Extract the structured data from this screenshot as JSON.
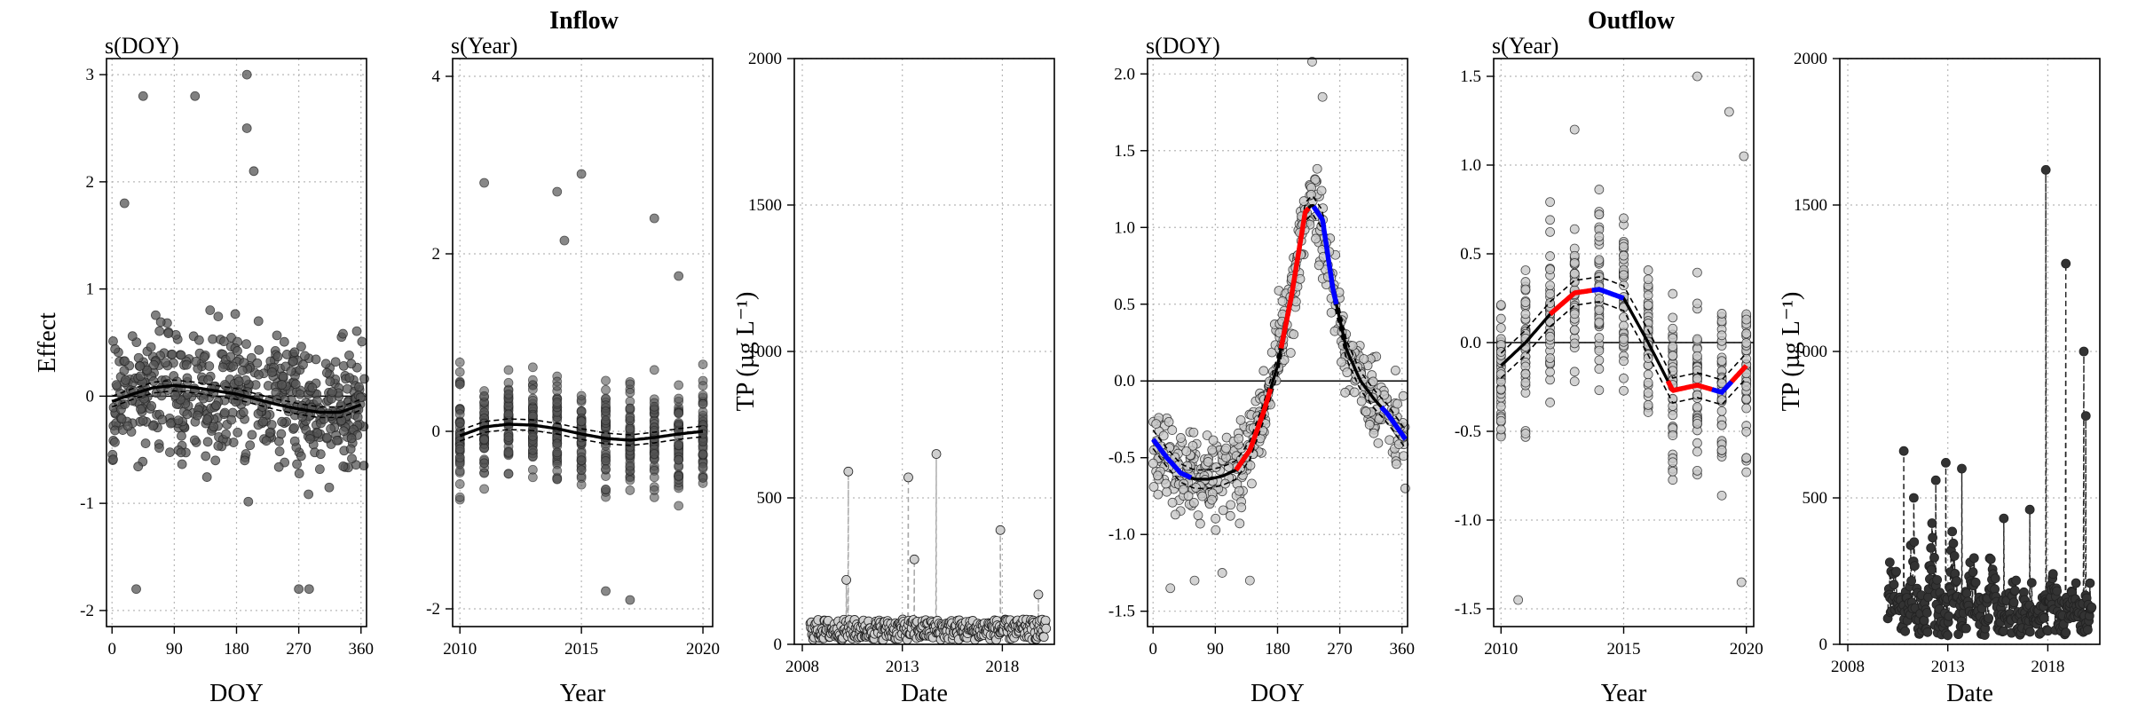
{
  "groups": [
    {
      "title": "Inflow",
      "over_panel": 1
    },
    {
      "title": "Outflow",
      "over_panel": 4
    }
  ],
  "chart_data": [
    {
      "type": "scatter",
      "panel_label": "s(DOY)",
      "xlabel": "DOY",
      "ylabel": "Effect",
      "xlim": [
        -8,
        368
      ],
      "ylim": [
        -2.15,
        3.15
      ],
      "xticks": [
        0,
        90,
        180,
        270,
        360
      ],
      "yticks": [
        -2,
        -1,
        0,
        1,
        2,
        3
      ],
      "grid": true,
      "zero_line": true,
      "point_color": "#555555",
      "points_description": "partial residuals, about 600 points spread across DOY 0-365",
      "points_range": [
        -1.8,
        3.0
      ],
      "outliers": [
        [
          45,
          2.8
        ],
        [
          120,
          2.8
        ],
        [
          195,
          3.0
        ],
        [
          195,
          2.5
        ],
        [
          205,
          2.1
        ],
        [
          18,
          1.8
        ],
        [
          270,
          -1.8
        ],
        [
          285,
          -1.8
        ],
        [
          35,
          -1.8
        ]
      ],
      "smooth": {
        "x": [
          0,
          30,
          60,
          90,
          120,
          150,
          180,
          210,
          240,
          270,
          300,
          330,
          360
        ],
        "y": [
          -0.05,
          0.02,
          0.08,
          0.1,
          0.08,
          0.05,
          0.02,
          -0.03,
          -0.08,
          -0.12,
          -0.15,
          -0.15,
          -0.08
        ],
        "se": 0.05
      }
    },
    {
      "type": "scatter",
      "panel_label": "s(Year)",
      "xlabel": "Year",
      "ylabel": "",
      "xlim": [
        2009.7,
        2020.4
      ],
      "ylim": [
        -2.2,
        4.2
      ],
      "xticks": [
        2010,
        2015,
        2020
      ],
      "yticks": [
        -2,
        0,
        2,
        4
      ],
      "grid": true,
      "zero_line": false,
      "point_color": "#555555",
      "points_description": "partial residuals stacked in yearly columns 2010-2020",
      "outliers": [
        [
          2011,
          2.8
        ],
        [
          2014,
          2.7
        ],
        [
          2014.3,
          2.15
        ],
        [
          2015,
          2.9
        ],
        [
          2018,
          2.4
        ],
        [
          2019,
          1.75
        ],
        [
          2016,
          -1.8
        ],
        [
          2017,
          -1.9
        ]
      ],
      "smooth": {
        "x": [
          2010,
          2011,
          2012,
          2013,
          2014,
          2015,
          2016,
          2017,
          2018,
          2019,
          2020
        ],
        "y": [
          -0.05,
          0.05,
          0.08,
          0.07,
          0.03,
          -0.03,
          -0.08,
          -0.1,
          -0.07,
          -0.03,
          0.0
        ],
        "se": 0.06
      }
    },
    {
      "type": "scatter",
      "panel_label": "",
      "xlabel": "Date",
      "ylabel": "TP (µg L⁻¹)",
      "xlim": [
        2007.6,
        2020.6
      ],
      "ylim": [
        0,
        2000
      ],
      "xticks": [
        2008,
        2013,
        2018
      ],
      "yticks": [
        0,
        500,
        1000,
        1500,
        2000
      ],
      "grid": true,
      "point_color": "#cfcfcf",
      "line_style": "dashed",
      "points_description": "light grey time series of TP concentrations, mostly below 150",
      "peaks": [
        [
          2010.3,
          590
        ],
        [
          2010.2,
          220
        ],
        [
          2013.3,
          570
        ],
        [
          2013.6,
          290
        ],
        [
          2014.7,
          650
        ],
        [
          2017.9,
          390
        ],
        [
          2019.8,
          170
        ]
      ]
    },
    {
      "type": "scatter",
      "panel_label": "s(DOY)",
      "xlabel": "DOY",
      "ylabel": "",
      "xlim": [
        -8,
        368
      ],
      "ylim": [
        -1.6,
        2.1
      ],
      "xticks": [
        0,
        90,
        180,
        270,
        360
      ],
      "yticks": [
        -1.5,
        -1.0,
        -0.5,
        0.0,
        0.5,
        1.0,
        1.5,
        2.0
      ],
      "ytick_labels": [
        "-1.5",
        "-1.0",
        "-0.5",
        "0.0",
        "0.5",
        "1.0",
        "1.5",
        "2.0"
      ],
      "grid": true,
      "zero_line": true,
      "point_color": "#c8c8c8",
      "points_description": "light grey partial residuals along the seasonal curve",
      "outliers": [
        [
          230,
          2.08
        ],
        [
          245,
          1.85
        ],
        [
          140,
          -1.3
        ],
        [
          100,
          -1.25
        ],
        [
          60,
          -1.3
        ],
        [
          25,
          -1.35
        ]
      ],
      "smooth": {
        "x": [
          0,
          20,
          40,
          60,
          80,
          100,
          120,
          140,
          160,
          180,
          200,
          220,
          230,
          245,
          260,
          280,
          300,
          320,
          340,
          365
        ],
        "y": [
          -0.38,
          -0.5,
          -0.6,
          -0.64,
          -0.64,
          -0.62,
          -0.58,
          -0.45,
          -0.2,
          0.1,
          0.55,
          1.1,
          1.15,
          1.05,
          0.6,
          0.2,
          0.0,
          -0.12,
          -0.22,
          -0.38
        ],
        "se": 0.06
      },
      "segment_colors": [
        {
          "from": 0,
          "to": 55,
          "color": "#0000ff"
        },
        {
          "from": 120,
          "to": 170,
          "color": "#ff0000"
        },
        {
          "from": 185,
          "to": 225,
          "color": "#ff0000"
        },
        {
          "from": 232,
          "to": 265,
          "color": "#0000ff"
        },
        {
          "from": 330,
          "to": 365,
          "color": "#0000ff"
        }
      ]
    },
    {
      "type": "scatter",
      "panel_label": "s(Year)",
      "xlabel": "Year",
      "ylabel": "",
      "xlim": [
        2009.7,
        2020.3
      ],
      "ylim": [
        -1.6,
        1.6
      ],
      "xticks": [
        2010,
        2015,
        2020
      ],
      "yticks": [
        -1.5,
        -1.0,
        -0.5,
        0.0,
        0.5,
        1.0,
        1.5
      ],
      "ytick_labels": [
        "-1.5",
        "-1.0",
        "-0.5",
        "0.0",
        "0.5",
        "1.0",
        "1.5"
      ],
      "grid": true,
      "zero_line": true,
      "point_color": "#c8c8c8",
      "points_description": "light grey residuals stacked in yearly columns",
      "outliers": [
        [
          2010.7,
          -1.45
        ],
        [
          2018,
          1.5
        ],
        [
          2019.3,
          1.3
        ],
        [
          2019.9,
          1.05
        ],
        [
          2013,
          1.2
        ],
        [
          2019.8,
          -1.35
        ]
      ],
      "smooth": {
        "x": [
          2010,
          2011,
          2012,
          2013,
          2014,
          2015,
          2016,
          2017,
          2018,
          2019,
          2020
        ],
        "y": [
          -0.13,
          0.0,
          0.16,
          0.28,
          0.3,
          0.25,
          0.0,
          -0.27,
          -0.24,
          -0.28,
          -0.13
        ],
        "se": 0.07
      },
      "segment_colors": [
        {
          "from": 2012.0,
          "to": 2013.7,
          "color": "#ff0000"
        },
        {
          "from": 2013.7,
          "to": 2015.0,
          "color": "#0000ff"
        },
        {
          "from": 2016.8,
          "to": 2018.6,
          "color": "#ff0000"
        },
        {
          "from": 2018.6,
          "to": 2019.4,
          "color": "#0000ff"
        },
        {
          "from": 2019.4,
          "to": 2020.0,
          "color": "#ff0000"
        }
      ]
    },
    {
      "type": "scatter",
      "panel_label": "",
      "xlabel": "Date",
      "ylabel": "TP (µg L⁻¹)",
      "xlim": [
        2007.6,
        2020.6
      ],
      "ylim": [
        0,
        2000
      ],
      "xticks": [
        2008,
        2013,
        2018
      ],
      "yticks": [
        0,
        500,
        1000,
        1500,
        2000
      ],
      "grid": true,
      "point_color": "#333333",
      "line_style": "dashed",
      "points_description": "dark grey time series of TP concentrations with spikes",
      "peaks": [
        [
          2010.1,
          280
        ],
        [
          2010.8,
          660
        ],
        [
          2011.3,
          500
        ],
        [
          2012.4,
          560
        ],
        [
          2012.9,
          620
        ],
        [
          2013.7,
          600
        ],
        [
          2015.8,
          430
        ],
        [
          2017.1,
          460
        ],
        [
          2017.9,
          1620
        ],
        [
          2018.9,
          1300
        ],
        [
          2019.8,
          1000
        ],
        [
          2019.9,
          780
        ]
      ]
    }
  ]
}
